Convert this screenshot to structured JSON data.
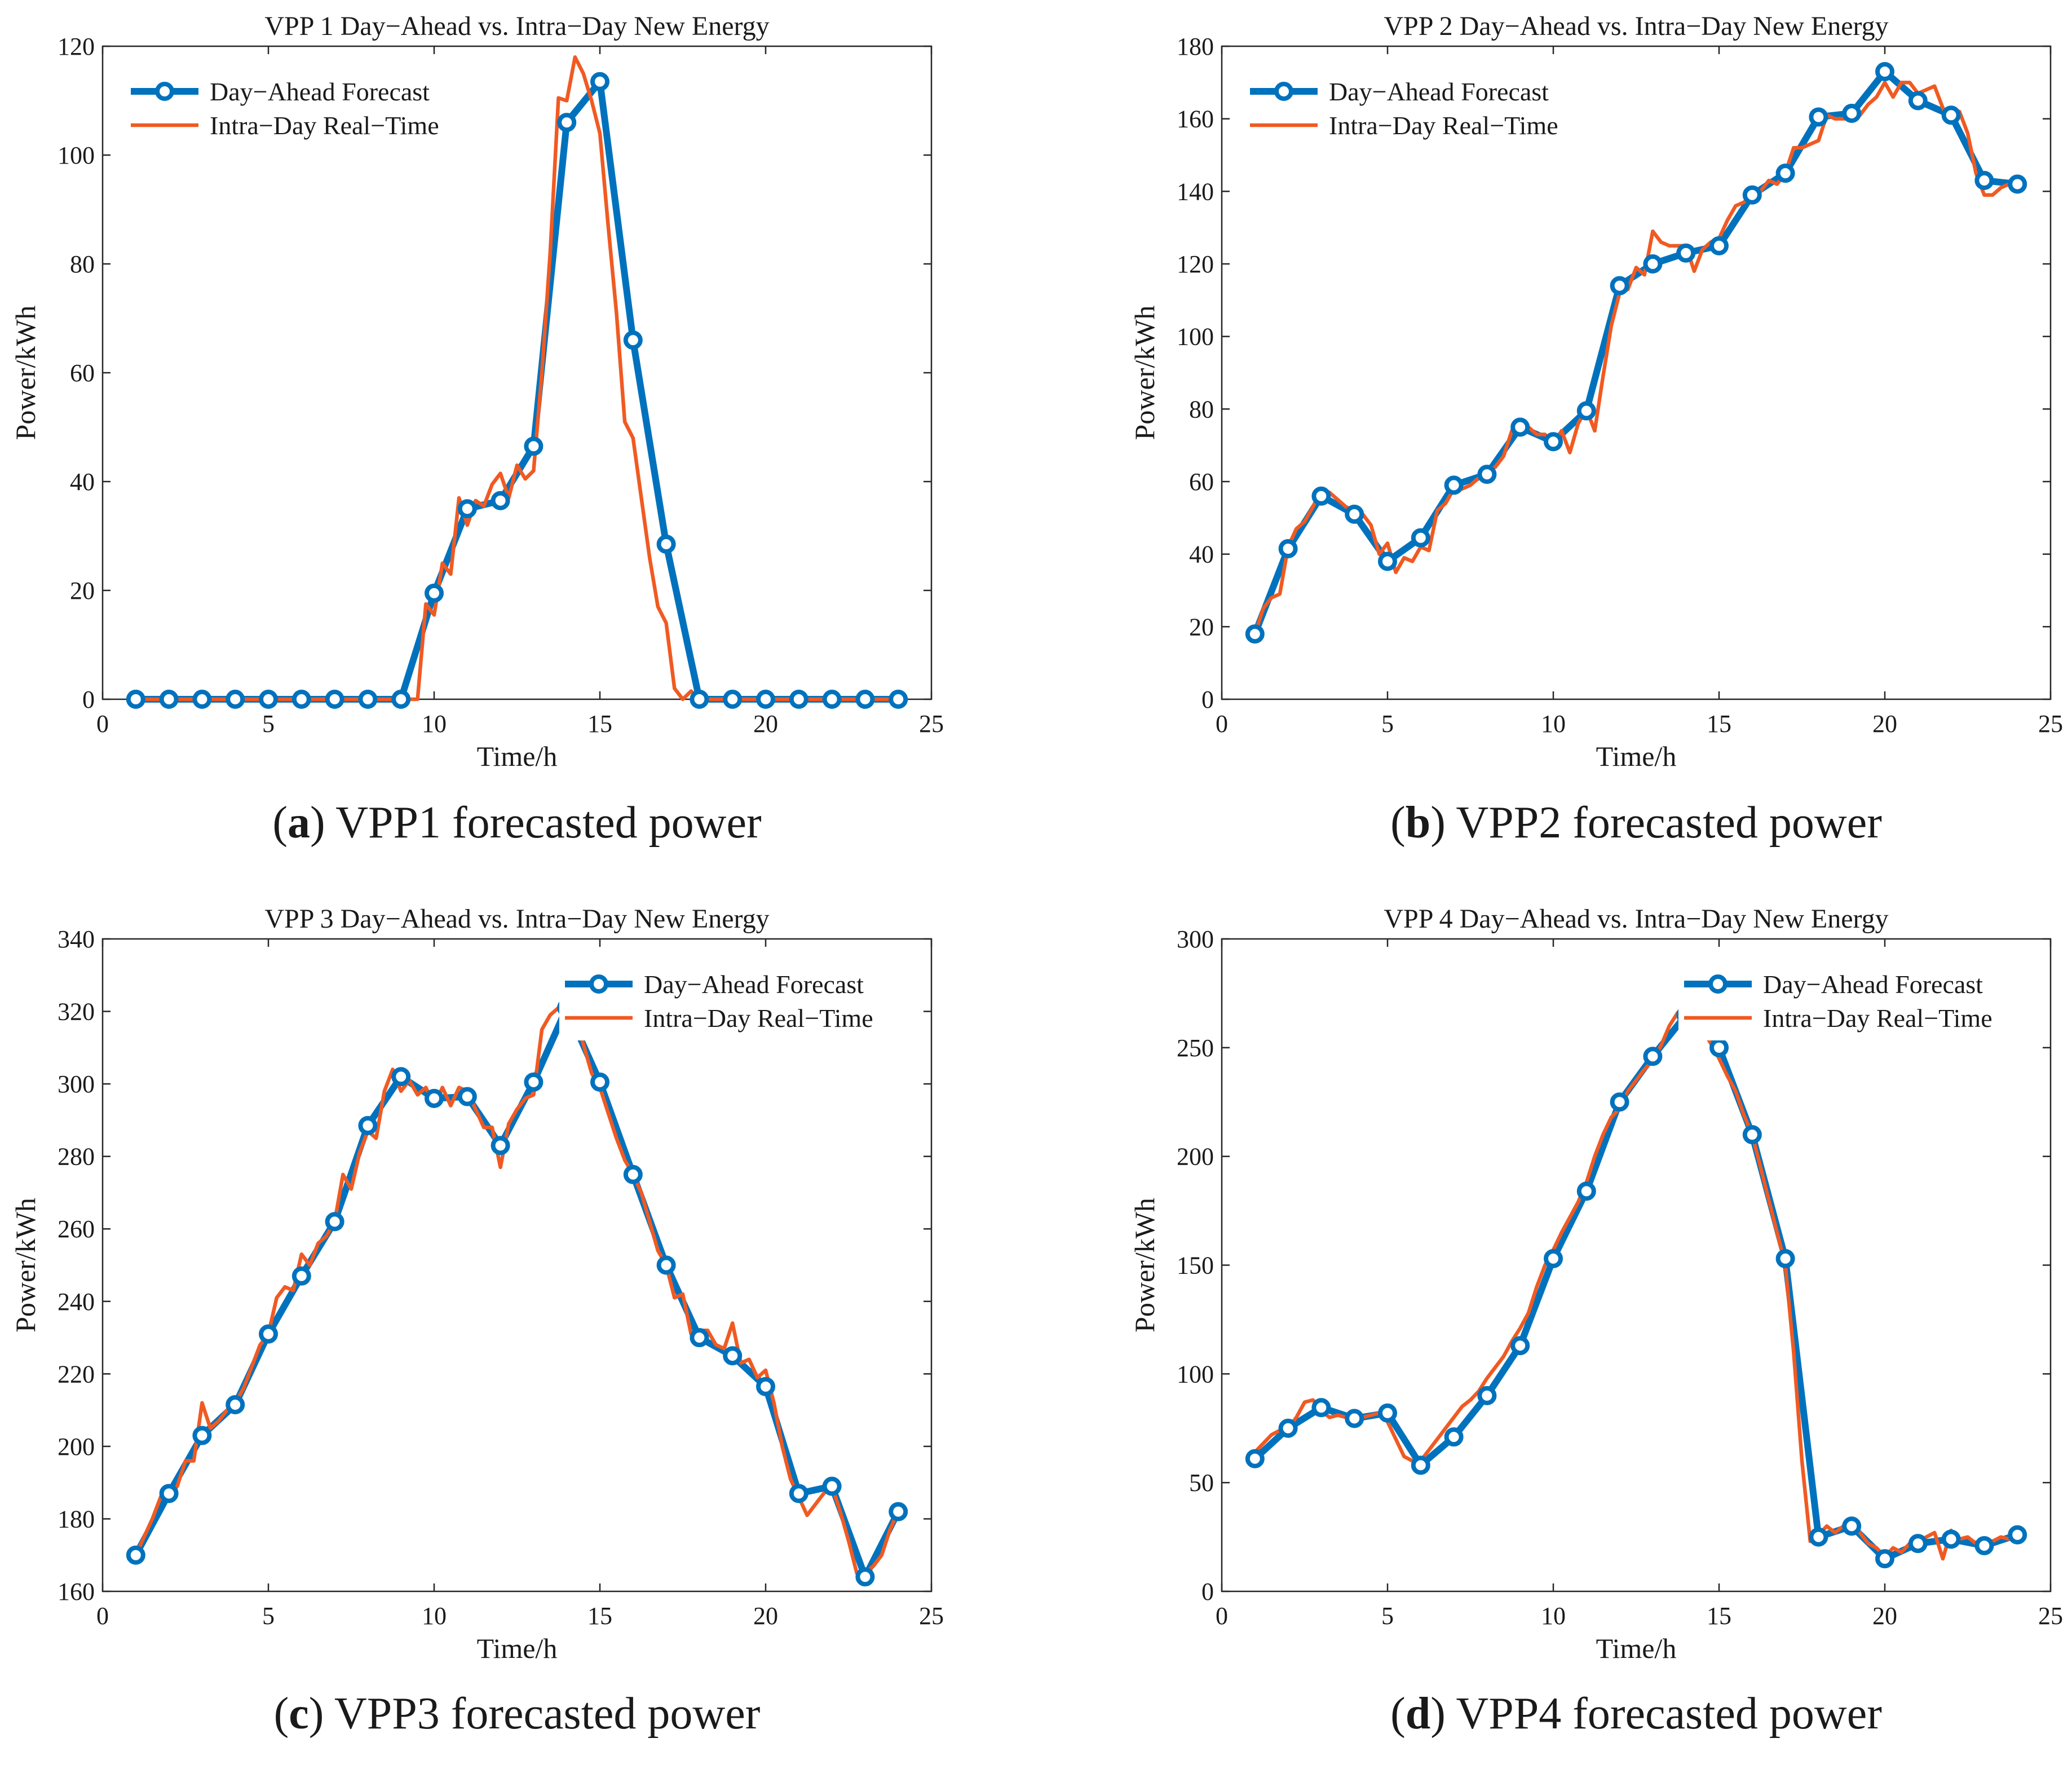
{
  "series_names": [
    "Day−Ahead Forecast",
    "Intra−Day Real−Time"
  ],
  "colors": {
    "day_ahead": "#0072BD",
    "intra_day": "#F05A22"
  },
  "chart_data": [
    {
      "type": "line",
      "id": "vpp1",
      "title": "VPP 1 Day−Ahead vs. Intra−Day New Energy",
      "xlabel": "Time/h",
      "ylabel": "Power/kWh",
      "xlim": [
        0,
        25
      ],
      "ylim": [
        0,
        120
      ],
      "xticks": [
        0,
        5,
        10,
        15,
        20,
        25
      ],
      "yticks": [
        0,
        20,
        40,
        60,
        80,
        100,
        120
      ],
      "legend": "top-left",
      "caption": {
        "letter": "a",
        "text": "VPP1 forecasted power",
        "prefix": "(",
        "suffix": ")"
      },
      "series": [
        {
          "name": "Day−Ahead Forecast",
          "x": [
            1,
            2,
            3,
            4,
            5,
            6,
            7,
            8,
            9,
            10,
            11,
            12,
            13,
            14,
            15,
            16,
            17,
            18,
            19,
            20,
            21,
            22,
            23,
            24
          ],
          "values": [
            0,
            0,
            0,
            0,
            0,
            0,
            0,
            0,
            0,
            19.5,
            35,
            36.5,
            46.5,
            106,
            113.5,
            66,
            28.5,
            0,
            0,
            0,
            0,
            0,
            0,
            0
          ]
        },
        {
          "name": "Intra−Day Real−Time",
          "x": [
            1,
            2,
            3,
            4,
            5,
            6,
            7,
            8,
            9,
            9.5,
            9.75,
            10,
            10.25,
            10.5,
            10.75,
            11,
            11.25,
            11.5,
            11.75,
            12,
            12.25,
            12.5,
            12.75,
            13,
            13.25,
            13.5,
            13.75,
            14,
            14.25,
            14.5,
            14.75,
            15,
            15.25,
            15.5,
            15.75,
            16,
            16.25,
            16.5,
            16.75,
            17,
            17.25,
            17.5,
            17.75,
            18,
            18.25,
            18.5,
            19,
            20,
            21,
            22,
            23,
            24
          ],
          "values": [
            0,
            0,
            0,
            0,
            0,
            0,
            0,
            0,
            0,
            0,
            17.5,
            15.5,
            25,
            23,
            37,
            32,
            36.5,
            35.5,
            39.5,
            41.5,
            37,
            43,
            40.5,
            42,
            60,
            82,
            110.5,
            110,
            118,
            115,
            110,
            104,
            87,
            71,
            51,
            48,
            37,
            26,
            17,
            14,
            2,
            0,
            1.5,
            0,
            0,
            0,
            0,
            0,
            0,
            0,
            0,
            0
          ]
        }
      ]
    },
    {
      "type": "line",
      "id": "vpp2",
      "title": "VPP 2 Day−Ahead vs. Intra−Day New Energy",
      "xlabel": "Time/h",
      "ylabel": "Power/kWh",
      "xlim": [
        0,
        25
      ],
      "ylim": [
        0,
        180
      ],
      "xticks": [
        0,
        5,
        10,
        15,
        20,
        25
      ],
      "yticks": [
        0,
        20,
        40,
        60,
        80,
        100,
        120,
        140,
        160,
        180
      ],
      "legend": "top-left",
      "caption": {
        "letter": "b",
        "text": "VPP2 forecasted power",
        "prefix": "(",
        "suffix": ")"
      },
      "series": [
        {
          "name": "Day−Ahead Forecast",
          "x": [
            1,
            2,
            3,
            4,
            5,
            6,
            7,
            8,
            9,
            10,
            11,
            12,
            13,
            14,
            15,
            16,
            17,
            18,
            19,
            20,
            21,
            22,
            23,
            24
          ],
          "values": [
            18,
            41.5,
            56,
            51,
            38,
            44.5,
            59,
            62,
            75,
            71,
            79.5,
            114,
            120,
            123,
            125,
            139,
            145,
            160.5,
            161.5,
            173,
            165,
            161,
            143,
            142
          ]
        },
        {
          "name": "Intra−Day Real−Time",
          "x": [
            1,
            1.25,
            1.5,
            1.75,
            2,
            2.25,
            2.5,
            2.75,
            3,
            3.25,
            3.5,
            3.75,
            4,
            4.25,
            4.5,
            4.75,
            5,
            5.25,
            5.5,
            5.75,
            6,
            6.25,
            6.5,
            6.75,
            7,
            7.25,
            7.5,
            7.75,
            8,
            8.25,
            8.5,
            8.75,
            9,
            9.25,
            9.5,
            9.75,
            10,
            10.25,
            10.5,
            10.75,
            11,
            11.25,
            11.5,
            11.75,
            12,
            12.25,
            12.5,
            12.75,
            13,
            13.25,
            13.5,
            13.75,
            14,
            14.25,
            14.5,
            14.75,
            15,
            15.25,
            15.5,
            15.75,
            16,
            16.25,
            16.5,
            16.75,
            17,
            17.25,
            17.5,
            17.75,
            18,
            18.25,
            18.5,
            18.75,
            19,
            19.25,
            19.5,
            19.75,
            20,
            20.25,
            20.5,
            20.75,
            21,
            21.25,
            21.5,
            21.75,
            22,
            22.25,
            22.5,
            22.75,
            23,
            23.25,
            23.5,
            23.75,
            24
          ],
          "values": [
            18,
            25,
            28,
            29,
            42,
            47,
            49,
            53,
            58,
            57,
            55,
            53,
            52,
            51,
            48,
            40,
            43,
            35,
            39,
            38,
            42,
            41,
            52,
            54,
            58,
            58,
            59,
            61,
            63,
            64,
            67,
            74,
            73,
            75,
            73,
            73,
            70,
            74,
            68,
            76,
            80,
            74,
            89,
            103,
            112,
            113,
            119,
            117,
            129,
            126,
            125,
            125,
            125,
            118,
            124,
            126,
            127,
            132,
            136,
            137,
            139,
            140,
            143,
            142,
            145,
            152,
            152,
            153,
            154,
            161,
            160,
            160,
            160,
            161,
            164,
            166,
            170,
            166,
            170,
            170,
            167,
            168,
            169,
            163,
            159,
            162,
            156,
            145,
            139,
            139,
            141,
            142,
            143
          ]
        }
      ]
    },
    {
      "type": "line",
      "id": "vpp3",
      "title": "VPP 3 Day−Ahead vs. Intra−Day New Energy",
      "xlabel": "Time/h",
      "ylabel": "Power/kWh",
      "xlim": [
        0,
        25
      ],
      "ylim": [
        160,
        340
      ],
      "xticks": [
        0,
        5,
        10,
        15,
        20,
        25
      ],
      "yticks": [
        160,
        180,
        200,
        220,
        240,
        260,
        280,
        300,
        320,
        340
      ],
      "legend": "top-right",
      "caption": {
        "letter": "c",
        "text": "VPP3 forecasted power",
        "prefix": "(",
        "suffix": ")"
      },
      "series": [
        {
          "name": "Day−Ahead Forecast",
          "x": [
            1,
            2,
            3,
            4,
            5,
            6,
            7,
            8,
            9,
            10,
            11,
            12,
            13,
            14,
            15,
            16,
            17,
            18,
            19,
            20,
            21,
            22,
            23,
            24
          ],
          "values": [
            170,
            187,
            203,
            211.5,
            231,
            247,
            262,
            288.5,
            302,
            296,
            296.5,
            283,
            300.5,
            321,
            300.5,
            275,
            250,
            230,
            225,
            216.5,
            187,
            189,
            164,
            182
          ]
        },
        {
          "name": "Intra−Day Real−Time",
          "x": [
            1,
            1.25,
            1.5,
            1.75,
            2,
            2.25,
            2.5,
            2.75,
            3,
            3.25,
            3.5,
            3.75,
            4,
            4.25,
            4.5,
            4.75,
            5,
            5.25,
            5.5,
            5.75,
            6,
            6.25,
            6.5,
            6.75,
            7,
            7.25,
            7.5,
            7.75,
            8,
            8.25,
            8.5,
            8.75,
            9,
            9.25,
            9.5,
            9.75,
            10,
            10.25,
            10.5,
            10.75,
            11,
            11.25,
            11.5,
            11.75,
            12,
            12.25,
            12.5,
            12.75,
            13,
            13.25,
            13.5,
            13.75,
            14,
            14.25,
            14.5,
            14.75,
            15,
            15.25,
            15.5,
            15.75,
            16,
            16.25,
            16.5,
            16.75,
            17,
            17.25,
            17.5,
            17.75,
            18,
            18.25,
            18.5,
            18.75,
            19,
            19.25,
            19.5,
            19.75,
            20,
            20.25,
            20.5,
            20.75,
            21,
            21.25,
            21.5,
            21.75,
            22,
            22.25,
            22.5,
            22.75,
            23,
            23.25,
            23.5,
            23.75,
            24
          ],
          "values": [
            170,
            175,
            180,
            186,
            186,
            189,
            196,
            196,
            212,
            205,
            207,
            210,
            212,
            216,
            222,
            228,
            231,
            241,
            244,
            243,
            253,
            250,
            256,
            258,
            262,
            275,
            271,
            281,
            287,
            285,
            298,
            304,
            298,
            301,
            297,
            299,
            294,
            299,
            294,
            299,
            298,
            293,
            288,
            288,
            277,
            289,
            293,
            296,
            297,
            315,
            319,
            321,
            321,
            319,
            311,
            303,
            299,
            292,
            285,
            279,
            275,
            270,
            262,
            254,
            250,
            241,
            242,
            231,
            232,
            232,
            228,
            227,
            234,
            223,
            224,
            219,
            221,
            212,
            200,
            191,
            186,
            181,
            184,
            187,
            189,
            182,
            174,
            165,
            165,
            167,
            170,
            177,
            182
          ]
        }
      ]
    },
    {
      "type": "line",
      "id": "vpp4",
      "title": "VPP 4 Day−Ahead vs. Intra−Day New Energy",
      "xlabel": "Time/h",
      "ylabel": "Power/kWh",
      "xlim": [
        0,
        25
      ],
      "ylim": [
        0,
        300
      ],
      "xticks": [
        0,
        5,
        10,
        15,
        20,
        25
      ],
      "yticks": [
        0,
        50,
        100,
        150,
        200,
        250,
        300
      ],
      "legend": "top-right",
      "caption": {
        "letter": "d",
        "text": "VPP4 forecasted power",
        "prefix": "(",
        "suffix": ")"
      },
      "series": [
        {
          "name": "Day−Ahead Forecast",
          "x": [
            1,
            2,
            3,
            4,
            5,
            6,
            7,
            8,
            9,
            10,
            11,
            12,
            13,
            14,
            15,
            16,
            17,
            18,
            19,
            20,
            21,
            22,
            23,
            24
          ],
          "values": [
            61,
            75,
            84.5,
            79.5,
            82,
            58,
            71,
            90,
            113,
            153,
            184,
            225,
            246,
            265,
            250,
            210,
            153,
            25,
            30,
            15,
            22,
            24,
            21,
            26
          ]
        },
        {
          "name": "Intra−Day Real−Time",
          "x": [
            1,
            1.25,
            1.5,
            1.75,
            2,
            2.25,
            2.5,
            2.75,
            3,
            3.25,
            3.5,
            3.75,
            4,
            4.25,
            4.5,
            4.75,
            5,
            5.25,
            5.5,
            5.75,
            6,
            6.25,
            6.5,
            6.75,
            7,
            7.25,
            7.5,
            7.75,
            8,
            8.25,
            8.5,
            8.75,
            9,
            9.25,
            9.5,
            9.75,
            10,
            10.25,
            10.5,
            10.75,
            11,
            11.25,
            11.5,
            11.75,
            12,
            12.25,
            12.5,
            12.75,
            13,
            13.25,
            13.5,
            13.75,
            14,
            14.25,
            14.5,
            14.75,
            15,
            15.25,
            15.5,
            15.75,
            16,
            16.25,
            16.5,
            16.75,
            17,
            17.25,
            17.5,
            17.75,
            18,
            18.25,
            18.5,
            18.75,
            19,
            19.25,
            19.5,
            19.75,
            20,
            20.25,
            20.5,
            20.75,
            21,
            21.25,
            21.5,
            21.75,
            22,
            22.25,
            22.5,
            22.75,
            23,
            23.25,
            23.5,
            23.75,
            24
          ],
          "values": [
            64,
            68,
            72,
            74,
            75,
            80,
            87,
            88,
            83,
            80,
            81,
            80,
            79,
            80,
            81,
            82,
            78,
            70,
            62,
            60,
            60,
            65,
            70,
            75,
            80,
            85,
            88,
            92,
            98,
            103,
            108,
            115,
            121,
            128,
            140,
            150,
            157,
            165,
            172,
            179,
            188,
            200,
            210,
            218,
            222,
            230,
            235,
            240,
            244,
            251,
            260,
            266,
            268,
            265,
            258,
            252,
            245,
            237,
            230,
            219,
            210,
            195,
            180,
            165,
            150,
            110,
            60,
            23,
            26,
            30,
            27,
            30,
            29,
            27,
            22,
            20,
            16,
            20,
            18,
            22,
            22,
            25,
            27,
            15,
            28,
            24,
            25,
            22,
            24,
            23,
            25,
            24,
            26
          ]
        }
      ]
    }
  ]
}
